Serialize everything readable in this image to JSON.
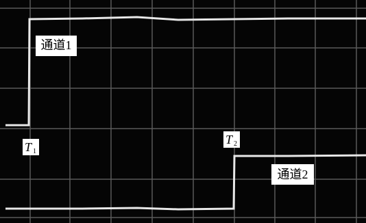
{
  "labels": {
    "channel1": "通道1",
    "channel2": "通道2",
    "t1": {
      "letter": "T",
      "sub": "1"
    },
    "t2": {
      "letter": "T",
      "sub": "2"
    }
  }
}
